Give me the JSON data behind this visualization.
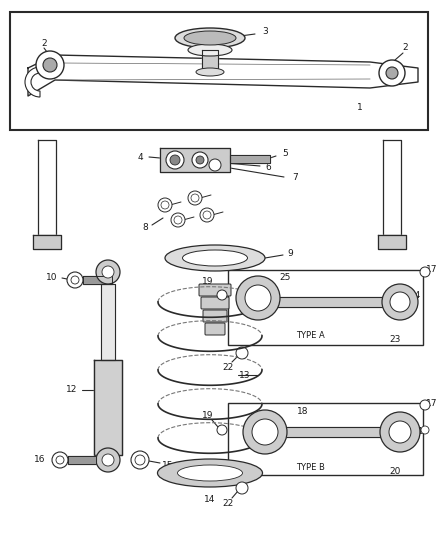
{
  "bg_color": "#ffffff",
  "line_color": "#2a2a2a",
  "fig_width": 4.38,
  "fig_height": 5.33,
  "dpi": 100
}
